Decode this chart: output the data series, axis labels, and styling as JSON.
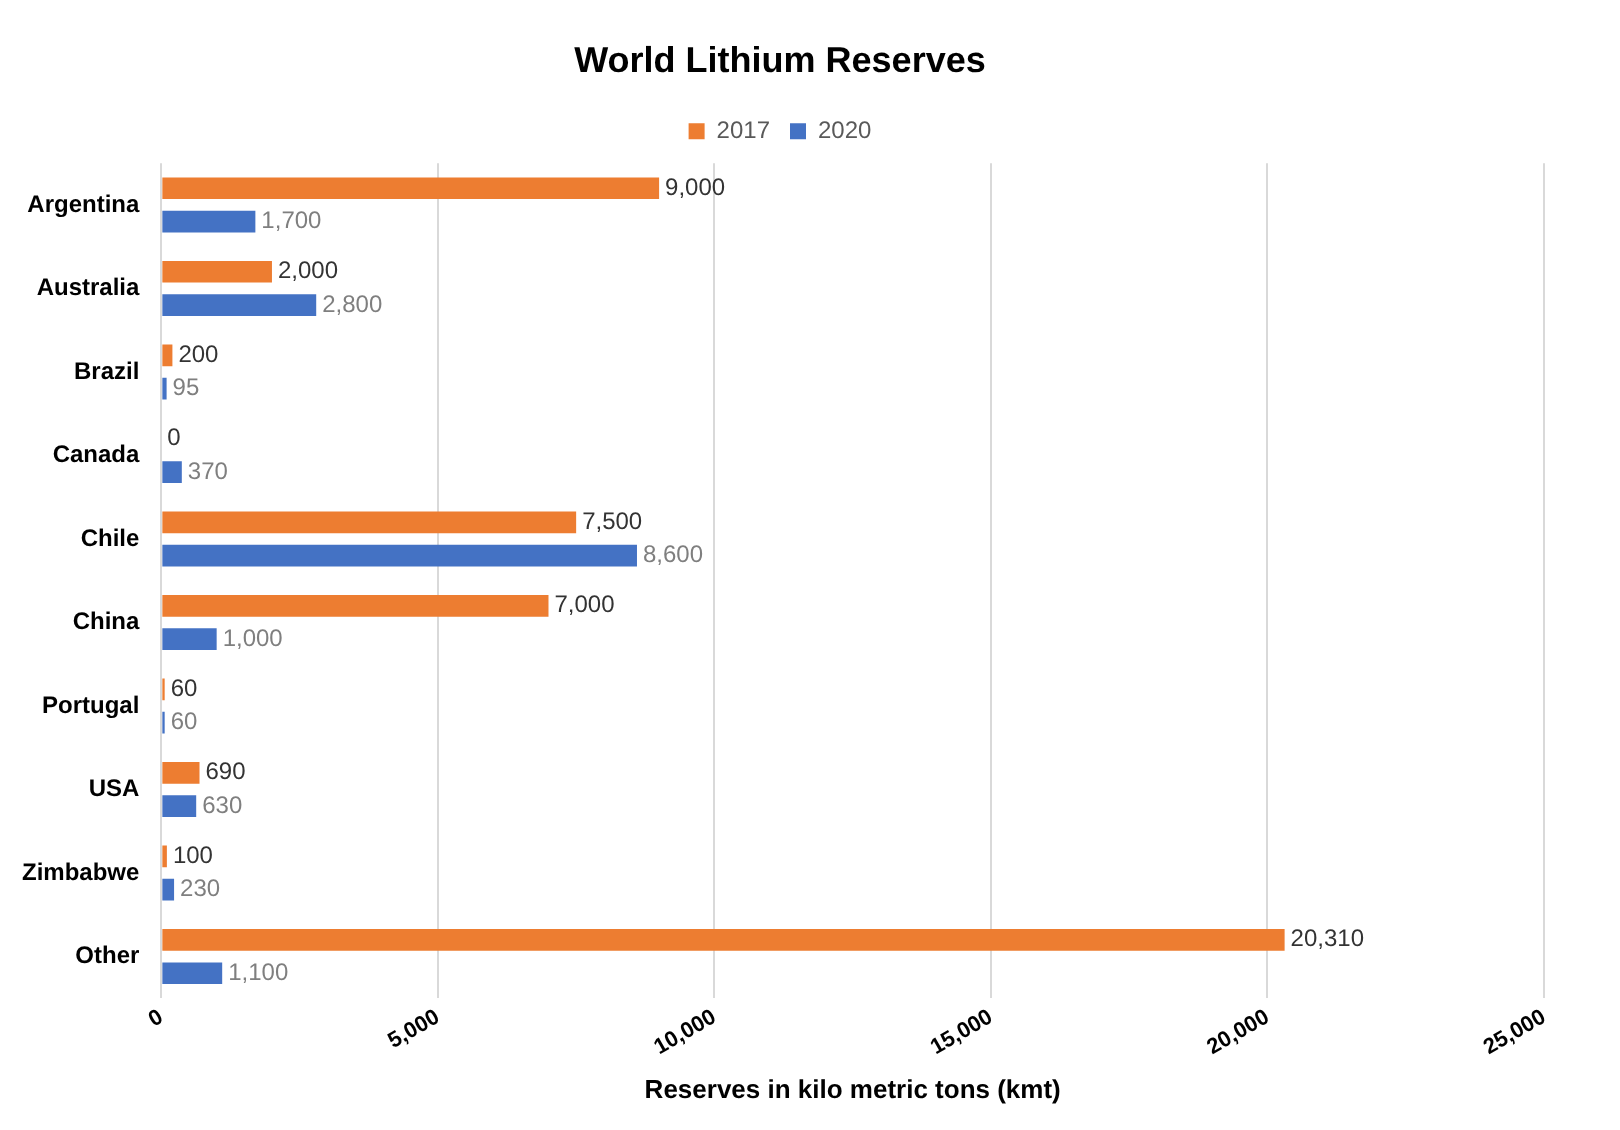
{
  "chart_data": {
    "type": "bar",
    "orientation": "horizontal",
    "title": "World Lithium Reserves",
    "xlabel": "Reserves in kilo metric tons (kmt)",
    "categories": [
      "Argentina",
      "Australia",
      "Brazil",
      "Canada",
      "Chile",
      "China",
      "Portugal",
      "USA",
      "Zimbabwe",
      "Other"
    ],
    "series": [
      {
        "name": "2017",
        "color": "#ed7d31",
        "values": [
          9000,
          2000,
          200,
          0,
          7500,
          7000,
          60,
          690,
          100,
          20310
        ],
        "value_labels": [
          "9,000",
          "2,000",
          "200",
          "0",
          "7,500",
          "7,000",
          "60",
          "690",
          "100",
          "20,310"
        ]
      },
      {
        "name": "2020",
        "color": "#4472c4",
        "values": [
          1700,
          2800,
          95,
          370,
          8600,
          1000,
          60,
          630,
          230,
          1100
        ],
        "value_labels": [
          "1,700",
          "2,800",
          "95",
          "370",
          "8,600",
          "1,000",
          "60",
          "630",
          "230",
          "1,100"
        ]
      }
    ],
    "xlim": [
      0,
      25000
    ],
    "xticks": [
      {
        "value": 0,
        "label": "0"
      },
      {
        "value": 5000,
        "label": "5,000"
      },
      {
        "value": 10000,
        "label": "10,000"
      },
      {
        "value": 15000,
        "label": "15,000"
      },
      {
        "value": 20000,
        "label": "20,000"
      },
      {
        "value": 25000,
        "label": "25,000"
      }
    ],
    "grid": "x",
    "legend": "top"
  }
}
